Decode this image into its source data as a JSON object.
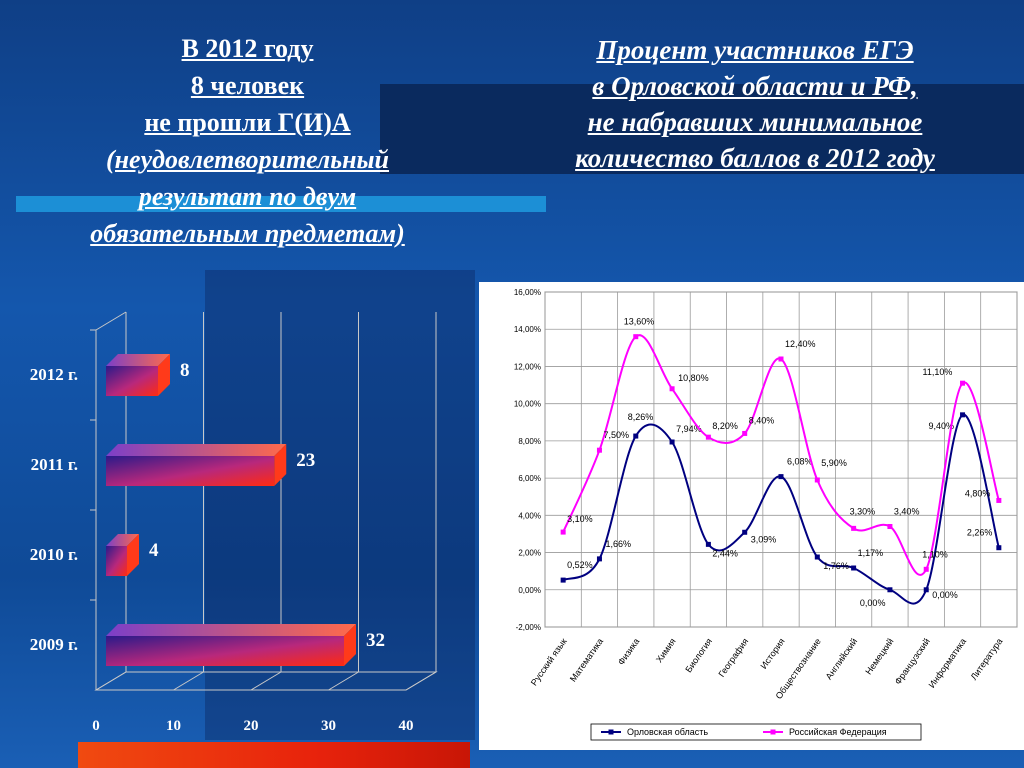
{
  "slide": {
    "left_title": [
      "В 2012 году",
      "8 человек",
      "не прошли Г(И)А",
      "(неудовлетворительный",
      "результат по двум",
      "обязательным предметам)"
    ],
    "right_title": [
      "Процент участников ЕГЭ",
      "в Орловской области и РФ,",
      "не набравших минимальное",
      "количество баллов в 2012 году"
    ],
    "colors": {
      "background": "#1457ad",
      "band_dark": "#0a2a5e",
      "band_light": "#1c8fd6",
      "bottom_bar": "#e8230c"
    }
  },
  "chart_data": [
    {
      "type": "bar",
      "orientation": "horizontal",
      "categories": [
        "2012 г.",
        "2011 г.",
        "2010 г.",
        "2009 г."
      ],
      "values": [
        8,
        23,
        4,
        32
      ],
      "data_labels": [
        "8",
        "23",
        "4",
        "32"
      ],
      "x_ticks": [
        "0",
        "10",
        "20",
        "30",
        "40"
      ],
      "xlim": [
        0,
        40
      ],
      "grid": true,
      "colors": {
        "bar_start": "#3a1f9c",
        "bar_mid": "#c42a7a",
        "bar_end": "#ff2a10"
      }
    },
    {
      "type": "line",
      "categories": [
        "Русский язык",
        "Математика",
        "Физика",
        "Химия",
        "Биология",
        "География",
        "История",
        "Обществознание",
        "Английский",
        "Немецкий",
        "Французский",
        "Информатика",
        "Литература"
      ],
      "series": [
        {
          "name": "Орловская область",
          "color": "#000080",
          "values": [
            0.52,
            1.66,
            8.26,
            7.94,
            2.44,
            3.09,
            6.08,
            1.76,
            1.17,
            0.0,
            0.0,
            9.4,
            2.26
          ],
          "labels": [
            "0,52%",
            "1,66%",
            "8,26%",
            "7,94%",
            "2,44%",
            "3,09%",
            "6,08%",
            "1,76%",
            "1,17%",
            "0,00%",
            "0,00%",
            "9,40%",
            "2,26%"
          ]
        },
        {
          "name": "Российская Федерация",
          "color": "#ff00ff",
          "values": [
            3.1,
            7.5,
            13.6,
            10.8,
            8.2,
            8.4,
            12.4,
            5.9,
            3.3,
            3.4,
            1.1,
            11.1,
            4.8
          ],
          "labels": [
            "3,10%",
            "7,50%",
            "13,60%",
            "10,80%",
            "8,20%",
            "8,40%",
            "12,40%",
            "5,90%",
            "3,30%",
            "3,40%",
            "1,10%",
            "11,10%",
            "4,80%"
          ]
        }
      ],
      "ylim": [
        -2,
        16
      ],
      "y_ticks": [
        "-2,00%",
        "0,00%",
        "2,00%",
        "4,00%",
        "6,00%",
        "8,00%",
        "10,00%",
        "12,00%",
        "14,00%",
        "16,00%"
      ],
      "grid": true,
      "legend_position": "bottom"
    }
  ]
}
